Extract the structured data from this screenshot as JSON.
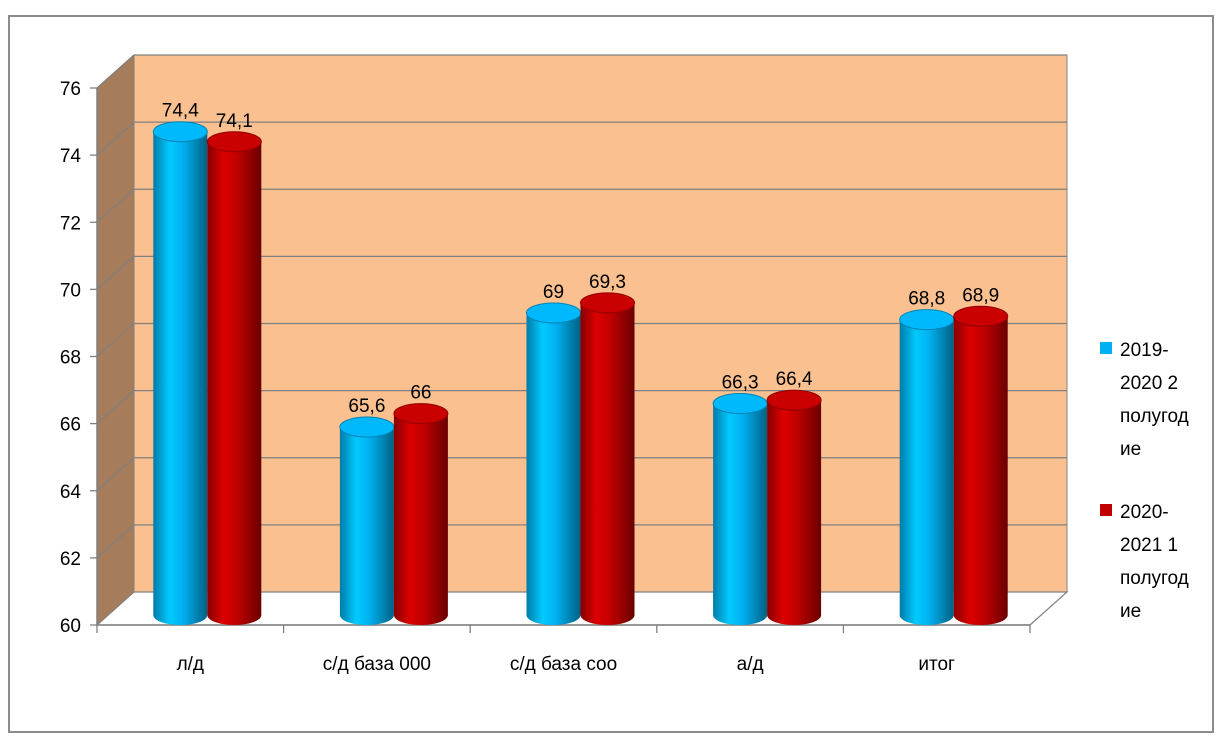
{
  "chart_data": {
    "type": "bar",
    "categories": [
      "л/д",
      "с/д база 000",
      "с/д база соо",
      "а/д",
      "итог"
    ],
    "series": [
      {
        "name": "2019-2020 2 полугодие",
        "legend_lines": [
          "2019-",
          "2020 2",
          "полугод",
          "ие"
        ],
        "color": "#00b0f0",
        "values": [
          74.4,
          65.6,
          69,
          66.3,
          68.8
        ],
        "labels": [
          "74,4",
          "65,6",
          "69",
          "66,3",
          "68,8"
        ]
      },
      {
        "name": "2020-2021 1 полугодие",
        "legend_lines": [
          "2020-",
          "2021 1",
          "полугод",
          "ие"
        ],
        "color": "#c00000",
        "values": [
          74.1,
          66,
          69.3,
          66.4,
          68.9
        ],
        "labels": [
          "74,1",
          "66",
          "69,3",
          "66,4",
          "68,9"
        ]
      }
    ],
    "ylim": [
      60,
      76
    ],
    "yticks": [
      "60",
      "62",
      "64",
      "66",
      "68",
      "70",
      "72",
      "74",
      "76"
    ],
    "grid": true,
    "legend_position": "right",
    "wall_color": "#fac090",
    "side_wall_color": "#a67c5b",
    "title": "",
    "xlabel": "",
    "ylabel": ""
  }
}
